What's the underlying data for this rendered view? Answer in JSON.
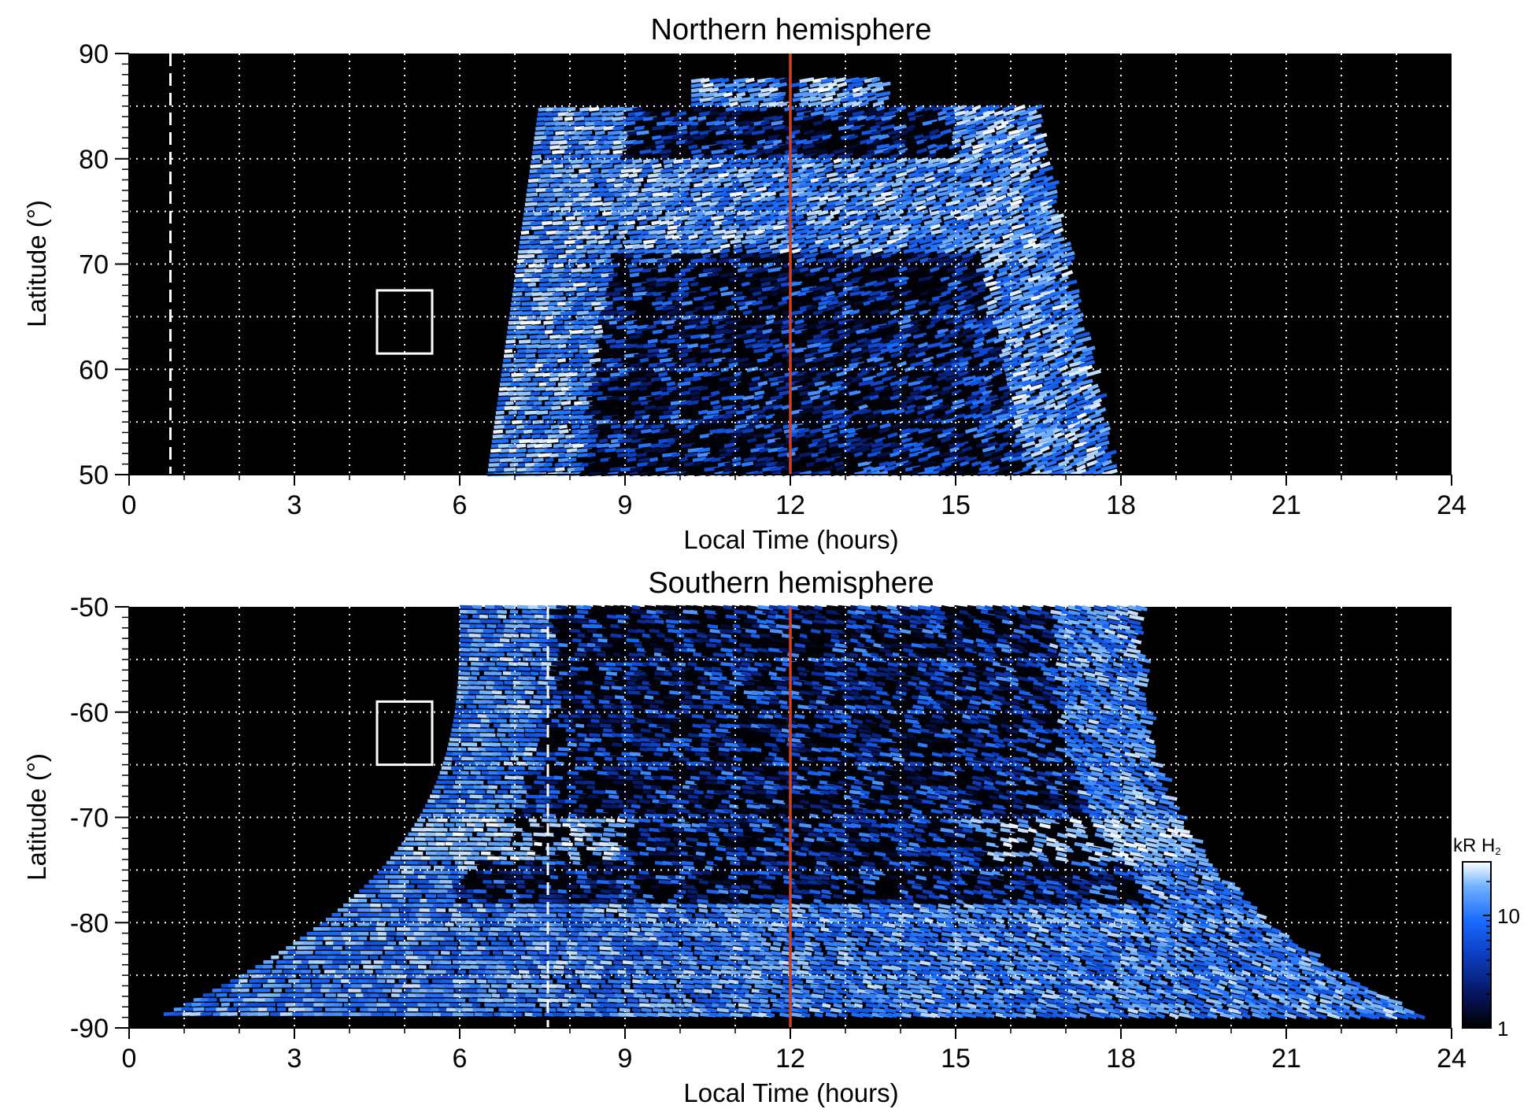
{
  "chart_data": [
    {
      "type": "heatmap",
      "title": "Northern hemisphere",
      "xlabel": "Local Time (hours)",
      "ylabel": "Latitude (°)",
      "xlim": [
        0,
        24
      ],
      "ylim": [
        50,
        90
      ],
      "x_ticks": [
        0,
        3,
        6,
        9,
        12,
        15,
        18,
        21,
        24
      ],
      "y_ticks": [
        50,
        60,
        70,
        80,
        90
      ],
      "x_tick_labels": [
        "0",
        "3",
        "6",
        "9",
        "12",
        "15",
        "18",
        "21",
        "24"
      ],
      "y_tick_labels": [
        "50",
        "60",
        "70",
        "80",
        "90"
      ],
      "grid": true,
      "grid_x_step": 1,
      "grid_y_lines": [
        55,
        65,
        75,
        85
      ],
      "noon_line_x": 12,
      "dashed_line_x": 0.75,
      "box": {
        "x0": 4.5,
        "x1": 5.5,
        "y0": 61.5,
        "y1": 67.5
      },
      "coverage": {
        "local_time_start_at_low_lat": 6.5,
        "local_time_end_at_low_lat": 17.8,
        "local_time_start_at_high_lat": 7.5,
        "local_time_end_at_high_lat": 16.2,
        "max_latitude": 87.5
      },
      "bright_oval_band_lat": [
        71,
        80
      ]
    },
    {
      "type": "heatmap",
      "title": "Southern hemisphere",
      "xlabel": "Local Time (hours)",
      "ylabel": "Latitude (°)",
      "xlim": [
        0,
        24
      ],
      "ylim": [
        -90,
        -50
      ],
      "x_ticks": [
        0,
        3,
        6,
        9,
        12,
        15,
        18,
        21,
        24
      ],
      "y_ticks": [
        -90,
        -80,
        -70,
        -60,
        -50
      ],
      "x_tick_labels": [
        "0",
        "3",
        "6",
        "9",
        "12",
        "15",
        "18",
        "21",
        "24"
      ],
      "y_tick_labels": [
        "-90",
        "-80",
        "-70",
        "-60",
        "-50"
      ],
      "grid": true,
      "grid_x_step": 1,
      "grid_y_lines": [
        -85,
        -75,
        -65,
        -55
      ],
      "noon_line_x": 12,
      "dashed_line_x": 7.6,
      "box": {
        "x0": 4.5,
        "x1": 5.5,
        "y0": -65,
        "y1": -59
      },
      "coverage": {
        "local_time_start_at_high_lat": 6.0,
        "local_time_end_at_high_lat": 18.3,
        "local_time_start_at_pole": 0.5,
        "local_time_end_at_pole": 23.5,
        "min_latitude": -89
      },
      "bright_oval_band_lat": [
        -74,
        -70
      ]
    }
  ],
  "colorbar": {
    "label_main": "kR H",
    "label_sub": "2",
    "tick_labels": [
      "1",
      "10"
    ],
    "tick_values": [
      1,
      10
    ],
    "range": [
      1,
      30
    ],
    "scale": "log",
    "colors": [
      "#000000",
      "#06155e",
      "#0c3fc4",
      "#1a6cff",
      "#6fb0ff",
      "#ffffff"
    ]
  },
  "colors": {
    "background": "#000000",
    "grid": "#ffffff",
    "noon_line": "#d2401e",
    "box": "#ffffff"
  }
}
